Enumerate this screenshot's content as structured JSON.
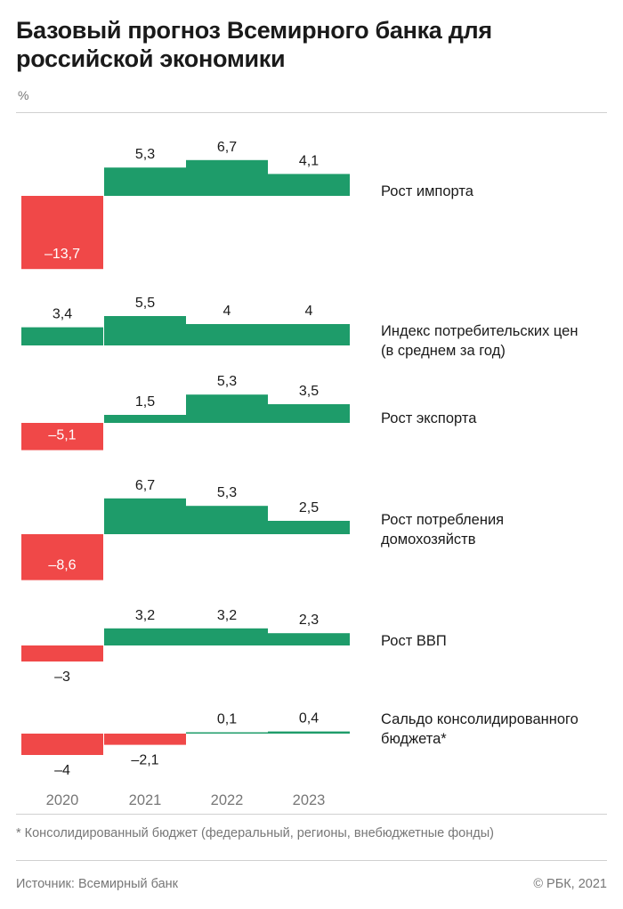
{
  "title": "Базовый прогноз Всемирного банка для российской экономики",
  "unit": "%",
  "footnote": "* Консолидированный бюджет (федеральный, регионы, внебюджетные фонды)",
  "source": "Источник: Всемирный банк",
  "copyright": "© РБК, 2021",
  "colors": {
    "positive": "#1e9c6a",
    "negative": "#f04848",
    "text": "#1a1a1a",
    "muted": "#777777"
  },
  "chart_data": {
    "type": "bar",
    "categories": [
      "2020",
      "2021",
      "2022",
      "2023"
    ],
    "series": [
      {
        "name": "Рост импорта",
        "values": [
          -13.7,
          5.3,
          6.7,
          4.1
        ],
        "labels": [
          "–13,7",
          "5,3",
          "6,7",
          "4,1"
        ]
      },
      {
        "name": "Индекс потребительских цен (в среднем за год)",
        "values": [
          3.4,
          5.5,
          4,
          4
        ],
        "labels": [
          "3,4",
          "5,5",
          "4",
          "4"
        ]
      },
      {
        "name": "Рост экспорта",
        "values": [
          -5.1,
          1.5,
          5.3,
          3.5
        ],
        "labels": [
          "–5,1",
          "1,5",
          "5,3",
          "3,5"
        ]
      },
      {
        "name": "Рост потребления домохозяйств",
        "values": [
          -8.6,
          6.7,
          5.3,
          2.5
        ],
        "labels": [
          "–8,6",
          "6,7",
          "5,3",
          "2,5"
        ]
      },
      {
        "name": "Рост ВВП",
        "values": [
          -3,
          3.2,
          3.2,
          2.3
        ],
        "labels": [
          "–3",
          "3,2",
          "3,2",
          "2,3"
        ]
      },
      {
        "name": "Сальдо консолидированного бюджета*",
        "values": [
          -4,
          -2.1,
          0.1,
          0.4
        ],
        "labels": [
          "–4",
          "–2,1",
          "0,1",
          "0,4"
        ]
      }
    ]
  }
}
